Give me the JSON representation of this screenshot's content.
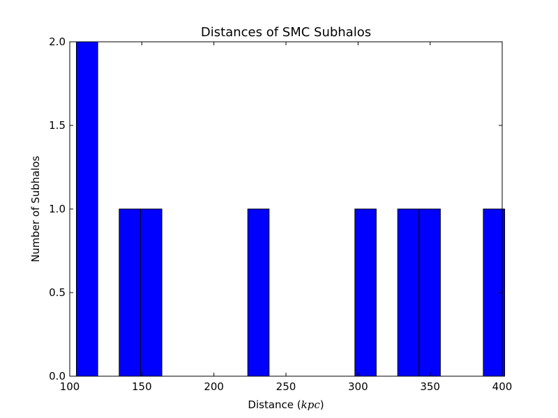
{
  "chart_data": {
    "type": "bar",
    "title": "Distances of SMC Subhalos",
    "xlabel": "Distance",
    "xlabel_unit": "kpc",
    "ylabel": "Number of Subhalos",
    "xlim": [
      100,
      400
    ],
    "ylim": [
      0,
      2
    ],
    "x_ticks": [
      100,
      150,
      200,
      250,
      300,
      350,
      400
    ],
    "y_ticks": [
      "0.0",
      "0.5",
      "1.0",
      "1.5",
      "2.0"
    ],
    "bar_color": "#0000ff",
    "grid": false,
    "bins": [
      {
        "x0": 104.6,
        "x1": 119.4,
        "count": 2
      },
      {
        "x0": 134.3,
        "x1": 149.1,
        "count": 1
      },
      {
        "x0": 149.1,
        "x1": 163.9,
        "count": 1
      },
      {
        "x0": 223.5,
        "x1": 238.3,
        "count": 1
      },
      {
        "x0": 297.8,
        "x1": 312.6,
        "count": 1
      },
      {
        "x0": 327.5,
        "x1": 342.3,
        "count": 1
      },
      {
        "x0": 342.3,
        "x1": 357.1,
        "count": 1
      },
      {
        "x0": 386.9,
        "x1": 401.7,
        "count": 1
      }
    ]
  }
}
